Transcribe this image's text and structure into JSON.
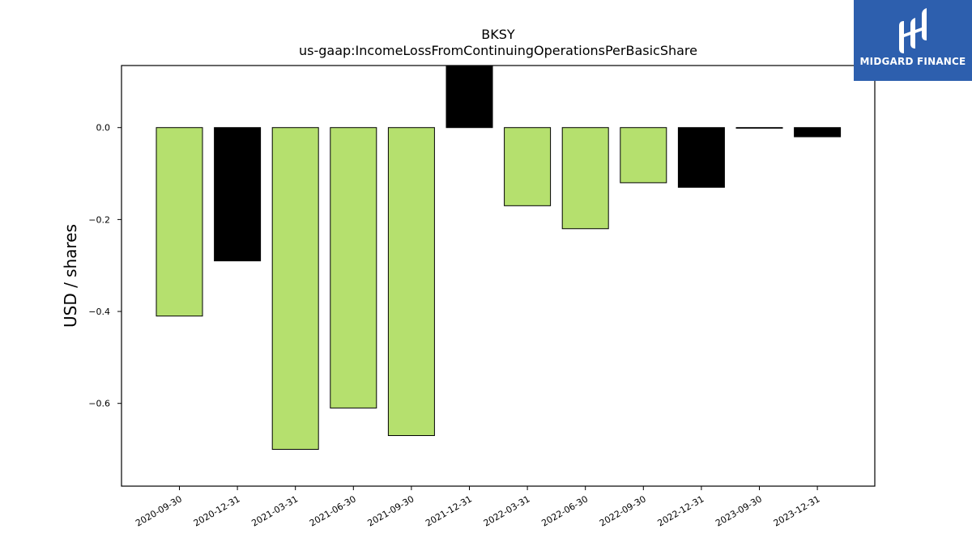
{
  "chart_data": {
    "type": "bar",
    "title": "BKSY",
    "subtitle": "us-gaap:IncomeLossFromContinuingOperationsPerBasicShare",
    "xlabel": "",
    "ylabel": "USD / shares",
    "ylim": [
      -0.78,
      0.135
    ],
    "yticks": [
      0.0,
      -0.2,
      -0.4,
      -0.6
    ],
    "ytick_labels": [
      "0.0",
      "−0.2",
      "−0.4",
      "−0.6"
    ],
    "grid": false,
    "categories": [
      "2020-09-30",
      "2020-12-31",
      "2021-03-31",
      "2021-06-30",
      "2021-09-30",
      "2021-12-31",
      "2022-03-31",
      "2022-06-30",
      "2022-09-30",
      "2022-12-31",
      "2023-09-30",
      "2023-12-31"
    ],
    "values": [
      -0.41,
      -0.29,
      -0.7,
      -0.61,
      -0.67,
      0.135,
      -0.17,
      -0.22,
      -0.12,
      -0.13,
      0.0,
      -0.02
    ],
    "bar_colors": [
      "#b5e06e",
      "#000000",
      "#b5e06e",
      "#b5e06e",
      "#b5e06e",
      "#000000",
      "#b5e06e",
      "#b5e06e",
      "#b5e06e",
      "#000000",
      "#000000",
      "#000000"
    ]
  },
  "logo": {
    "text": "MIDGARD FINANCE",
    "background": "#2d5fae"
  }
}
